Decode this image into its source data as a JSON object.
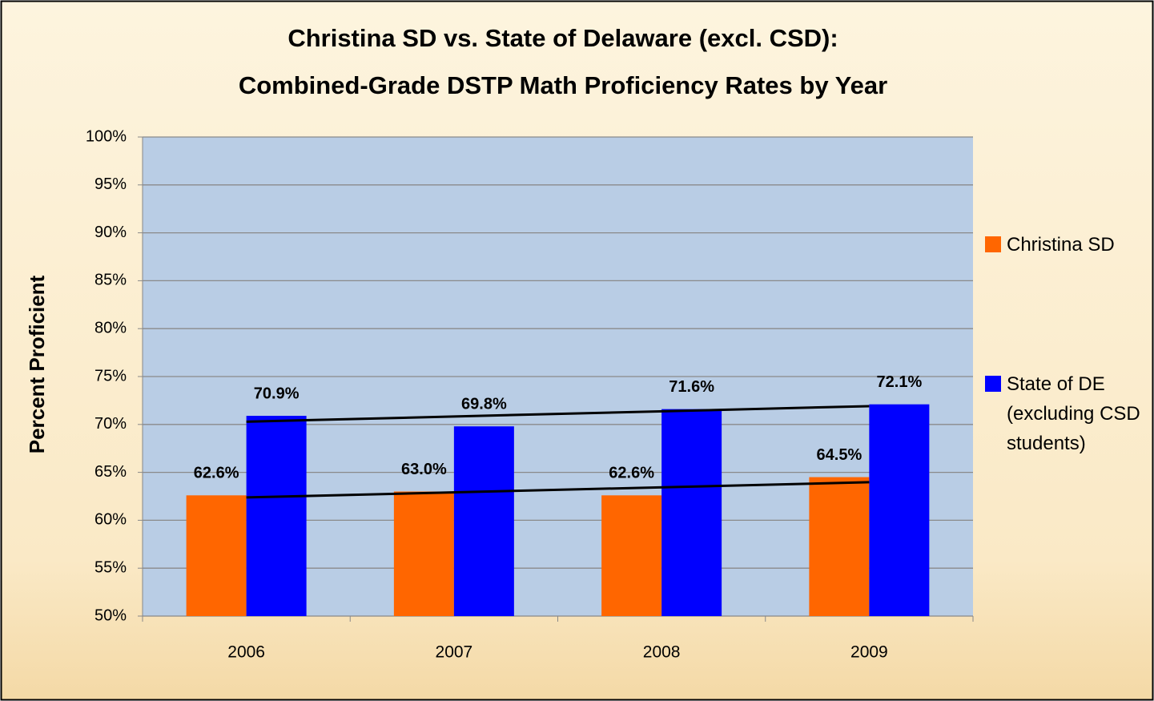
{
  "chart_data": {
    "type": "bar",
    "title": [
      "Christina SD vs. State of Delaware (excl. CSD):",
      "Combined-Grade DSTP Math Proficiency Rates by Year"
    ],
    "y_label": "Percent Proficient",
    "categories": [
      "2006",
      "2007",
      "2008",
      "2009"
    ],
    "series": [
      {
        "name": "Christina SD",
        "color": "#ff6600",
        "values": [
          62.6,
          63.0,
          62.6,
          64.5
        ],
        "value_labels": [
          "62.6%",
          "63.0%",
          "62.6%",
          "64.5%"
        ]
      },
      {
        "name": "State of DE (excluding CSD students)",
        "color": "#0000ff",
        "values": [
          70.9,
          69.8,
          71.6,
          72.1
        ],
        "value_labels": [
          "70.9%",
          "69.8%",
          "71.6%",
          "72.1%"
        ]
      }
    ],
    "ylim": [
      50,
      100
    ],
    "yticks": [
      {
        "value": 50,
        "label": "50%"
      },
      {
        "value": 55,
        "label": "55%"
      },
      {
        "value": 60,
        "label": "60%"
      },
      {
        "value": 65,
        "label": "65%"
      },
      {
        "value": 70,
        "label": "70%"
      },
      {
        "value": 75,
        "label": "75%"
      },
      {
        "value": 80,
        "label": "80%"
      },
      {
        "value": 85,
        "label": "85%"
      },
      {
        "value": 90,
        "label": "90%"
      },
      {
        "value": 95,
        "label": "95%"
      },
      {
        "value": 100,
        "label": "100%"
      }
    ],
    "grid": true,
    "trendline": true,
    "legend": "right"
  }
}
